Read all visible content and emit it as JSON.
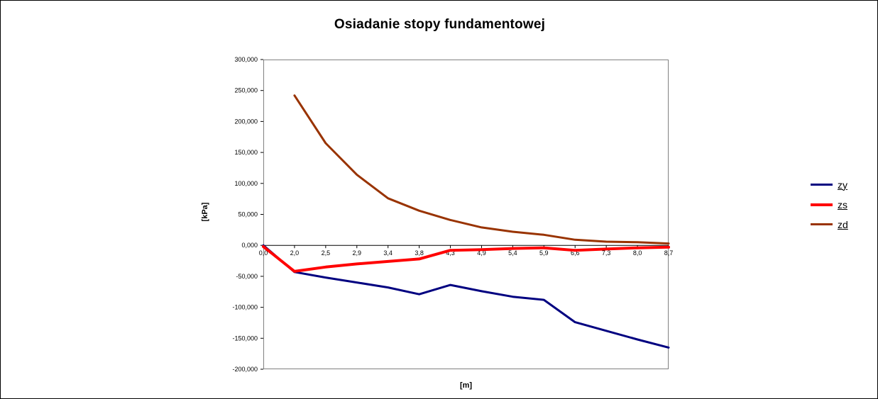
{
  "window": {
    "background": "#ffffff",
    "border_color": "#000000"
  },
  "chart_data": {
    "type": "line",
    "title": "Osiadanie stopy fundamentowej",
    "xlabel": "[m]",
    "ylabel": "[kPa]",
    "ylim": [
      -200,
      300
    ],
    "y_tick_step": 50,
    "y_tick_labels": [
      "300,000",
      "250,000",
      "200,000",
      "150,000",
      "100,000",
      "50,000",
      "0,000",
      "-50,000",
      "-100,000",
      "-150,000",
      "-200,000"
    ],
    "categories": [
      "0,0",
      "2,0",
      "2,5",
      "2,9",
      "3,4",
      "3,8",
      "4,3",
      "4,9",
      "5,4",
      "5,9",
      "6,6",
      "7,3",
      "8,0",
      "8,7"
    ],
    "grid": "off",
    "axis_color": "#000000",
    "plot_border_color": "#808080",
    "series": [
      {
        "name": "zy",
        "color": "#000080",
        "width": 3,
        "values": [
          0,
          -43,
          -52,
          -60,
          -68,
          -79,
          -64,
          -74,
          -83,
          -88,
          -124,
          -138,
          -152,
          -165
        ]
      },
      {
        "name": "zs",
        "color": "#ff0000",
        "width": 4,
        "values": [
          -2,
          -42,
          -35,
          -30,
          -26,
          -22,
          -8,
          -7,
          -5,
          -4,
          -8,
          -6,
          -4,
          -3
        ]
      },
      {
        "name": "zd",
        "color": "#993300",
        "width": 3,
        "values": [
          null,
          242,
          165,
          114,
          76,
          56,
          41,
          29,
          22,
          17,
          9,
          6,
          5,
          3
        ]
      }
    ],
    "legend": {
      "position": "right",
      "items": [
        {
          "label": "zy",
          "color": "#000080"
        },
        {
          "label": "zs",
          "color": "#ff0000"
        },
        {
          "label": "zd",
          "color": "#993300"
        }
      ]
    }
  }
}
